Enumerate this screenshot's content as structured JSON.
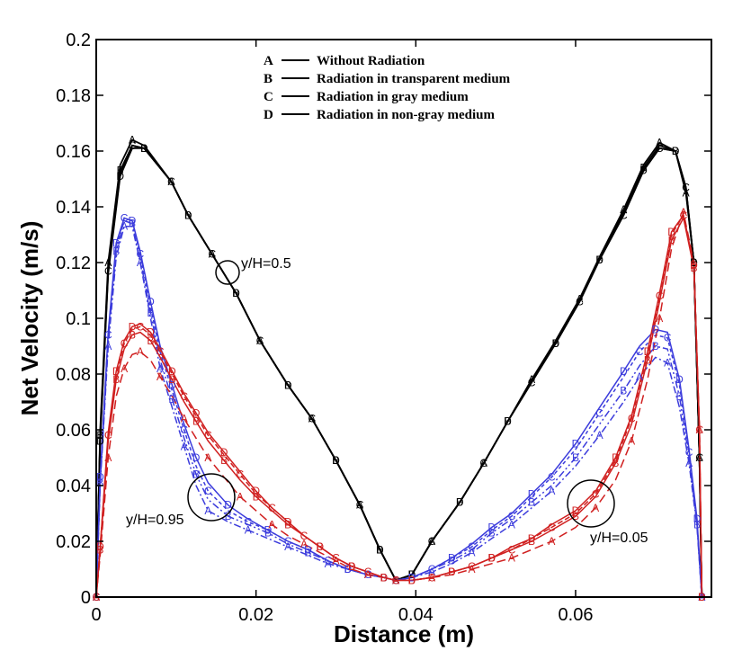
{
  "chart_data": {
    "type": "line",
    "title": "",
    "xlabel": "Distance (m)",
    "ylabel": "Net Velocity (m/s)",
    "xlim": [
      0,
      0.077
    ],
    "ylim": [
      0,
      0.2
    ],
    "xticks": [
      0,
      0.02,
      0.04,
      0.06
    ],
    "xtick_labels": [
      "0",
      "0.02",
      "0.04",
      "0.06"
    ],
    "yticks": [
      0,
      0.02,
      0.04,
      0.06,
      0.08,
      0.1,
      0.12,
      0.14,
      0.16,
      0.18,
      0.2
    ],
    "ytick_labels": [
      "0",
      "0.02",
      "0.04",
      "0.06",
      "0.08",
      "0.1",
      "0.12",
      "0.14",
      "0.16",
      "0.18",
      "0.2"
    ],
    "grid": false,
    "legend": {
      "placement": "top-center",
      "entries": [
        {
          "key": "A",
          "label": "Without Radiation"
        },
        {
          "key": "B",
          "label": "Radiation in transparent medium"
        },
        {
          "key": "C",
          "label": "Radiation in gray medium"
        },
        {
          "key": "D",
          "label": "Radiation in non-gray medium"
        }
      ]
    },
    "annotations": [
      {
        "text": "y/H=0.5",
        "x": 0.0165,
        "y": 0.118
      },
      {
        "text": "y/H=0.95",
        "x": 0.0145,
        "y": 0.036
      },
      {
        "text": "y/H=0.05",
        "x": 0.0615,
        "y": 0.033
      }
    ],
    "colors": {
      "mid": "#000000",
      "top": "#3c3cdc",
      "bottom": "#d02020"
    },
    "series": [
      {
        "name": "A",
        "group": "y/H=0.5",
        "color": "#000000",
        "dash": "",
        "x": [
          0,
          0.0005,
          0.0015,
          0.003,
          0.0045,
          0.006,
          0.0094,
          0.0115,
          0.0145,
          0.0175,
          0.0205,
          0.024,
          0.027,
          0.03,
          0.033,
          0.0355,
          0.0375,
          0.0395,
          0.042,
          0.0455,
          0.0485,
          0.0515,
          0.0545,
          0.0575,
          0.0605,
          0.063,
          0.066,
          0.0685,
          0.0705,
          0.0725,
          0.0738,
          0.0748,
          0.0755,
          0.0758
        ],
        "y": [
          0,
          0.06,
          0.12,
          0.155,
          0.164,
          0.162,
          0.149,
          0.137,
          0.123,
          0.109,
          0.092,
          0.076,
          0.064,
          0.049,
          0.033,
          0.017,
          0.006,
          0.008,
          0.02,
          0.034,
          0.048,
          0.063,
          0.078,
          0.092,
          0.107,
          0.122,
          0.139,
          0.155,
          0.163,
          0.16,
          0.145,
          0.12,
          0.05,
          0
        ]
      },
      {
        "name": "B",
        "group": "y/H=0.5",
        "color": "#000000",
        "dash": "",
        "x": [
          0,
          0.0005,
          0.0015,
          0.003,
          0.0045,
          0.006,
          0.0094,
          0.0115,
          0.0145,
          0.0175,
          0.0205,
          0.024,
          0.027,
          0.03,
          0.033,
          0.0355,
          0.0375,
          0.0395,
          0.042,
          0.0455,
          0.0485,
          0.0515,
          0.0545,
          0.0575,
          0.0605,
          0.063,
          0.066,
          0.0685,
          0.0705,
          0.0725,
          0.0738,
          0.0748,
          0.0755,
          0.0758
        ],
        "y": [
          0,
          0.058,
          0.118,
          0.153,
          0.162,
          0.161,
          0.149,
          0.137,
          0.123,
          0.109,
          0.092,
          0.076,
          0.064,
          0.049,
          0.033,
          0.017,
          0.006,
          0.008,
          0.02,
          0.034,
          0.048,
          0.063,
          0.078,
          0.091,
          0.106,
          0.121,
          0.138,
          0.154,
          0.162,
          0.16,
          0.146,
          0.12,
          0.05,
          0
        ]
      },
      {
        "name": "C",
        "group": "y/H=0.5",
        "color": "#000000",
        "dash": "",
        "x": [
          0,
          0.0005,
          0.0015,
          0.003,
          0.0045,
          0.006,
          0.0094,
          0.0115,
          0.0145,
          0.0175,
          0.0205,
          0.024,
          0.027,
          0.03,
          0.033,
          0.0355,
          0.0375,
          0.0395,
          0.042,
          0.0455,
          0.0485,
          0.0515,
          0.0545,
          0.0575,
          0.0605,
          0.063,
          0.066,
          0.0685,
          0.0705,
          0.0725,
          0.0738,
          0.0748,
          0.0755,
          0.0758
        ],
        "y": [
          0,
          0.057,
          0.117,
          0.152,
          0.162,
          0.161,
          0.149,
          0.137,
          0.123,
          0.109,
          0.092,
          0.076,
          0.064,
          0.049,
          0.033,
          0.017,
          0.006,
          0.008,
          0.02,
          0.034,
          0.048,
          0.063,
          0.077,
          0.091,
          0.106,
          0.121,
          0.137,
          0.153,
          0.161,
          0.16,
          0.147,
          0.12,
          0.05,
          0
        ]
      },
      {
        "name": "D",
        "group": "y/H=0.5",
        "color": "#000000",
        "dash": "",
        "x": [
          0,
          0.0005,
          0.0015,
          0.003,
          0.0045,
          0.006,
          0.0094,
          0.0115,
          0.0145,
          0.0175,
          0.0205,
          0.024,
          0.027,
          0.03,
          0.033,
          0.0355,
          0.0375,
          0.0395,
          0.042,
          0.0455,
          0.0485,
          0.0515,
          0.0545,
          0.0575,
          0.0605,
          0.063,
          0.066,
          0.0685,
          0.0705,
          0.0725,
          0.0738,
          0.0748,
          0.0755,
          0.0758
        ],
        "y": [
          0,
          0.056,
          0.116,
          0.151,
          0.161,
          0.161,
          0.149,
          0.137,
          0.123,
          0.109,
          0.092,
          0.076,
          0.064,
          0.049,
          0.033,
          0.017,
          0.006,
          0.008,
          0.02,
          0.034,
          0.048,
          0.063,
          0.077,
          0.091,
          0.106,
          0.121,
          0.137,
          0.153,
          0.161,
          0.16,
          0.147,
          0.12,
          0.05,
          0
        ]
      },
      {
        "name": "A",
        "group": "y/H=0.95",
        "color": "#3c3cdc",
        "dash": "8,3,2,3",
        "x": [
          0,
          0.0005,
          0.0015,
          0.0025,
          0.0035,
          0.0045,
          0.0055,
          0.0068,
          0.008,
          0.0095,
          0.011,
          0.0125,
          0.014,
          0.0165,
          0.019,
          0.0215,
          0.024,
          0.0265,
          0.029,
          0.0315,
          0.034,
          0.036,
          0.0375,
          0.0395,
          0.042,
          0.0445,
          0.047,
          0.0495,
          0.052,
          0.0545,
          0.057,
          0.06,
          0.063,
          0.066,
          0.068,
          0.07,
          0.0715,
          0.073,
          0.0742,
          0.0752,
          0.0758
        ],
        "y": [
          0,
          0.04,
          0.09,
          0.122,
          0.133,
          0.133,
          0.12,
          0.1,
          0.082,
          0.068,
          0.054,
          0.04,
          0.031,
          0.027,
          0.024,
          0.021,
          0.018,
          0.015,
          0.012,
          0.01,
          0.008,
          0.007,
          0.006,
          0.007,
          0.009,
          0.012,
          0.016,
          0.021,
          0.026,
          0.032,
          0.038,
          0.047,
          0.058,
          0.07,
          0.079,
          0.086,
          0.084,
          0.068,
          0.048,
          0.025,
          0
        ]
      },
      {
        "name": "B",
        "group": "y/H=0.95",
        "color": "#3c3cdc",
        "dash": "8,3,2,3,2,3",
        "x": [
          0,
          0.0005,
          0.0015,
          0.0025,
          0.0035,
          0.0045,
          0.0055,
          0.0068,
          0.008,
          0.0095,
          0.011,
          0.0125,
          0.014,
          0.0165,
          0.019,
          0.0215,
          0.024,
          0.0265,
          0.029,
          0.0315,
          0.034,
          0.036,
          0.0375,
          0.0395,
          0.042,
          0.0445,
          0.047,
          0.0495,
          0.052,
          0.0545,
          0.057,
          0.06,
          0.063,
          0.066,
          0.068,
          0.07,
          0.0715,
          0.073,
          0.0742,
          0.0752,
          0.0758
        ],
        "y": [
          0,
          0.041,
          0.092,
          0.124,
          0.135,
          0.134,
          0.121,
          0.102,
          0.085,
          0.071,
          0.057,
          0.044,
          0.035,
          0.029,
          0.026,
          0.023,
          0.019,
          0.016,
          0.013,
          0.01,
          0.008,
          0.007,
          0.006,
          0.007,
          0.01,
          0.013,
          0.017,
          0.023,
          0.028,
          0.034,
          0.04,
          0.05,
          0.062,
          0.074,
          0.083,
          0.09,
          0.089,
          0.072,
          0.05,
          0.026,
          0
        ]
      },
      {
        "name": "C",
        "group": "y/H=0.95",
        "color": "#3c3cdc",
        "dash": "4,3",
        "x": [
          0,
          0.0005,
          0.0015,
          0.0025,
          0.0035,
          0.0045,
          0.0055,
          0.0068,
          0.008,
          0.0095,
          0.011,
          0.0125,
          0.014,
          0.0165,
          0.019,
          0.0215,
          0.024,
          0.0265,
          0.029,
          0.0315,
          0.034,
          0.036,
          0.0375,
          0.0395,
          0.042,
          0.0445,
          0.047,
          0.0495,
          0.052,
          0.0545,
          0.057,
          0.06,
          0.063,
          0.066,
          0.068,
          0.07,
          0.0715,
          0.073,
          0.0742,
          0.0752,
          0.0758
        ],
        "y": [
          0,
          0.042,
          0.094,
          0.126,
          0.136,
          0.135,
          0.123,
          0.104,
          0.088,
          0.074,
          0.06,
          0.047,
          0.038,
          0.031,
          0.027,
          0.024,
          0.02,
          0.017,
          0.013,
          0.01,
          0.008,
          0.007,
          0.006,
          0.007,
          0.01,
          0.014,
          0.018,
          0.024,
          0.029,
          0.036,
          0.043,
          0.053,
          0.066,
          0.079,
          0.088,
          0.094,
          0.093,
          0.076,
          0.052,
          0.027,
          0
        ]
      },
      {
        "name": "D",
        "group": "y/H=0.95",
        "color": "#3c3cdc",
        "dash": "",
        "x": [
          0,
          0.0005,
          0.0015,
          0.0025,
          0.0035,
          0.0045,
          0.0055,
          0.0068,
          0.008,
          0.0095,
          0.011,
          0.0125,
          0.014,
          0.0165,
          0.019,
          0.0215,
          0.024,
          0.0265,
          0.029,
          0.0315,
          0.034,
          0.036,
          0.0375,
          0.0395,
          0.042,
          0.0445,
          0.047,
          0.0495,
          0.052,
          0.0545,
          0.057,
          0.06,
          0.063,
          0.066,
          0.068,
          0.07,
          0.0715,
          0.073,
          0.0742,
          0.0752,
          0.0758
        ],
        "y": [
          0,
          0.043,
          0.095,
          0.127,
          0.136,
          0.135,
          0.124,
          0.106,
          0.09,
          0.076,
          0.062,
          0.05,
          0.041,
          0.033,
          0.028,
          0.024,
          0.02,
          0.017,
          0.013,
          0.01,
          0.008,
          0.007,
          0.006,
          0.007,
          0.01,
          0.014,
          0.019,
          0.025,
          0.03,
          0.037,
          0.044,
          0.055,
          0.068,
          0.081,
          0.09,
          0.096,
          0.095,
          0.078,
          0.053,
          0.028,
          0
        ]
      },
      {
        "name": "A",
        "group": "y/H=0.05",
        "color": "#d02020",
        "dash": "10,5",
        "x": [
          0,
          0.0005,
          0.0015,
          0.0025,
          0.0035,
          0.0045,
          0.0055,
          0.0068,
          0.008,
          0.0095,
          0.011,
          0.0125,
          0.014,
          0.016,
          0.018,
          0.02,
          0.022,
          0.024,
          0.026,
          0.028,
          0.03,
          0.032,
          0.034,
          0.036,
          0.0375,
          0.0395,
          0.042,
          0.0445,
          0.047,
          0.0495,
          0.052,
          0.0545,
          0.057,
          0.06,
          0.0625,
          0.065,
          0.067,
          0.069,
          0.0705,
          0.072,
          0.0735,
          0.0748,
          0.0755,
          0.0758
        ],
        "y": [
          0,
          0.015,
          0.05,
          0.072,
          0.082,
          0.087,
          0.088,
          0.085,
          0.079,
          0.072,
          0.064,
          0.057,
          0.05,
          0.043,
          0.036,
          0.031,
          0.026,
          0.022,
          0.019,
          0.016,
          0.013,
          0.01,
          0.008,
          0.007,
          0.006,
          0.006,
          0.007,
          0.008,
          0.01,
          0.012,
          0.014,
          0.017,
          0.02,
          0.025,
          0.032,
          0.042,
          0.056,
          0.078,
          0.1,
          0.125,
          0.138,
          0.12,
          0.06,
          0
        ]
      },
      {
        "name": "B",
        "group": "y/H=0.05",
        "color": "#d02020",
        "dash": "",
        "x": [
          0,
          0.0005,
          0.0015,
          0.0025,
          0.0035,
          0.0045,
          0.0055,
          0.0068,
          0.008,
          0.0095,
          0.011,
          0.0125,
          0.014,
          0.016,
          0.018,
          0.02,
          0.022,
          0.024,
          0.026,
          0.028,
          0.03,
          0.032,
          0.034,
          0.036,
          0.0375,
          0.0395,
          0.042,
          0.0445,
          0.047,
          0.0495,
          0.052,
          0.0545,
          0.057,
          0.06,
          0.0625,
          0.065,
          0.067,
          0.069,
          0.0705,
          0.072,
          0.0735,
          0.0748,
          0.0755,
          0.0758
        ],
        "y": [
          0,
          0.017,
          0.056,
          0.078,
          0.089,
          0.094,
          0.095,
          0.092,
          0.086,
          0.078,
          0.07,
          0.063,
          0.056,
          0.049,
          0.042,
          0.036,
          0.031,
          0.026,
          0.022,
          0.018,
          0.014,
          0.011,
          0.009,
          0.007,
          0.006,
          0.006,
          0.007,
          0.009,
          0.011,
          0.014,
          0.017,
          0.02,
          0.024,
          0.029,
          0.036,
          0.048,
          0.062,
          0.085,
          0.106,
          0.128,
          0.136,
          0.118,
          0.06,
          0
        ]
      },
      {
        "name": "C",
        "group": "y/H=0.05",
        "color": "#d02020",
        "dash": "6,3",
        "x": [
          0,
          0.0005,
          0.0015,
          0.0025,
          0.0035,
          0.0045,
          0.0055,
          0.0068,
          0.008,
          0.0095,
          0.011,
          0.0125,
          0.014,
          0.016,
          0.018,
          0.02,
          0.022,
          0.024,
          0.026,
          0.028,
          0.03,
          0.032,
          0.034,
          0.036,
          0.0375,
          0.0395,
          0.042,
          0.0445,
          0.047,
          0.0495,
          0.052,
          0.0545,
          0.057,
          0.06,
          0.0625,
          0.065,
          0.067,
          0.069,
          0.0705,
          0.072,
          0.0735,
          0.0748,
          0.0755,
          0.0758
        ],
        "y": [
          0,
          0.018,
          0.058,
          0.08,
          0.091,
          0.096,
          0.097,
          0.094,
          0.088,
          0.08,
          0.072,
          0.065,
          0.058,
          0.051,
          0.044,
          0.037,
          0.032,
          0.027,
          0.022,
          0.018,
          0.014,
          0.011,
          0.009,
          0.007,
          0.006,
          0.006,
          0.007,
          0.009,
          0.011,
          0.014,
          0.017,
          0.021,
          0.025,
          0.03,
          0.037,
          0.049,
          0.064,
          0.087,
          0.108,
          0.13,
          0.137,
          0.119,
          0.06,
          0
        ]
      },
      {
        "name": "D",
        "group": "y/H=0.05",
        "color": "#d02020",
        "dash": "",
        "x": [
          0,
          0.0005,
          0.0015,
          0.0025,
          0.0035,
          0.0045,
          0.0055,
          0.0068,
          0.008,
          0.0095,
          0.011,
          0.0125,
          0.014,
          0.016,
          0.018,
          0.02,
          0.022,
          0.024,
          0.026,
          0.028,
          0.03,
          0.032,
          0.034,
          0.036,
          0.0375,
          0.0395,
          0.042,
          0.0445,
          0.047,
          0.0495,
          0.052,
          0.0545,
          0.057,
          0.06,
          0.0625,
          0.065,
          0.067,
          0.069,
          0.0705,
          0.072,
          0.0735,
          0.0748,
          0.0755,
          0.0758
        ],
        "y": [
          0,
          0.018,
          0.059,
          0.081,
          0.092,
          0.097,
          0.098,
          0.095,
          0.089,
          0.081,
          0.073,
          0.066,
          0.059,
          0.052,
          0.045,
          0.038,
          0.032,
          0.027,
          0.022,
          0.018,
          0.014,
          0.011,
          0.009,
          0.007,
          0.006,
          0.006,
          0.007,
          0.009,
          0.011,
          0.014,
          0.018,
          0.021,
          0.026,
          0.031,
          0.038,
          0.05,
          0.065,
          0.088,
          0.109,
          0.131,
          0.137,
          0.119,
          0.06,
          0
        ]
      }
    ]
  }
}
